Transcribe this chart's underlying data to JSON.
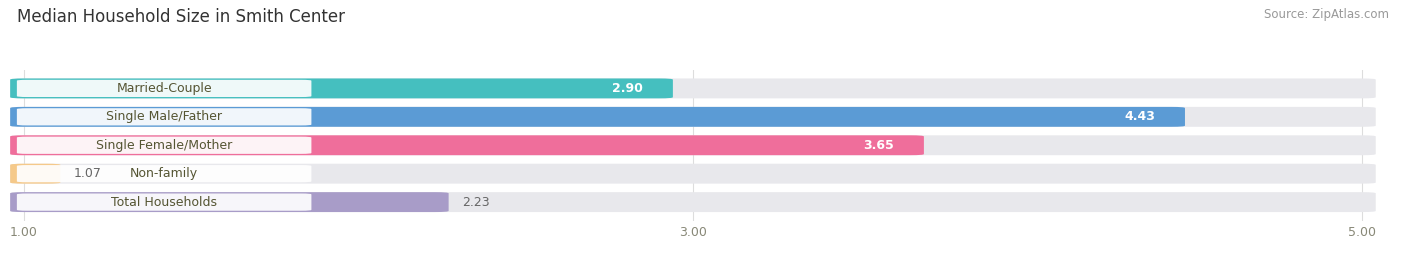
{
  "title": "Median Household Size in Smith Center",
  "source": "Source: ZipAtlas.com",
  "categories": [
    "Married-Couple",
    "Single Male/Father",
    "Single Female/Mother",
    "Non-family",
    "Total Households"
  ],
  "values": [
    2.9,
    4.43,
    3.65,
    1.07,
    2.23
  ],
  "bar_colors": [
    "#45BFBF",
    "#5B9BD5",
    "#EF6E9B",
    "#F5C98A",
    "#A89CC8"
  ],
  "track_color": "#E8E8EC",
  "xmin": 1.0,
  "xmax": 5.0,
  "xticks": [
    1.0,
    3.0,
    5.0
  ],
  "label_fontsize": 9,
  "value_fontsize": 9,
  "title_fontsize": 12,
  "source_fontsize": 8.5,
  "bar_height": 0.62,
  "background_color": "#FFFFFF",
  "label_box_color": "#FFFFFF",
  "label_text_color": "#555533"
}
